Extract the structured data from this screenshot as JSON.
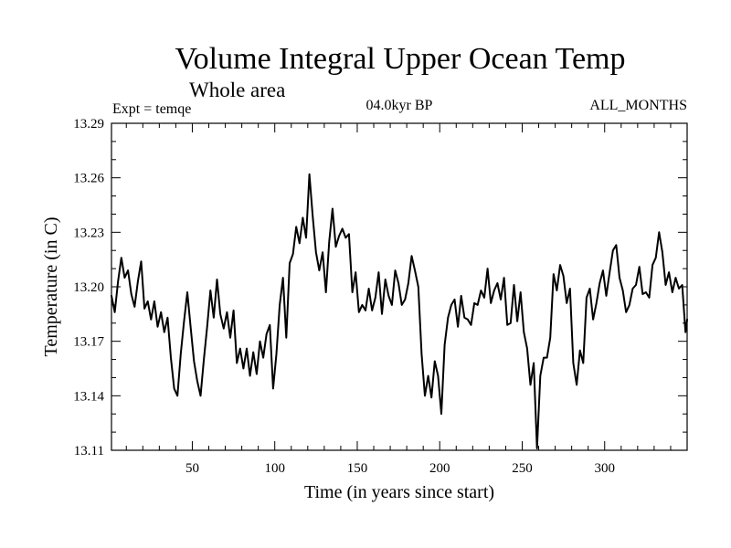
{
  "chart_data": {
    "type": "line",
    "title": "Volume Integral Upper Ocean Temp",
    "subtitle": "Whole area",
    "left_label": "Expt = temqe",
    "center_label": "04.0kyr BP",
    "right_label": "ALL_MONTHS",
    "xlabel": "Time (in years since start)",
    "ylabel": "Temperature (in C)",
    "xlim": [
      1,
      350
    ],
    "ylim": [
      13.11,
      13.29
    ],
    "xticks": [
      50,
      100,
      150,
      200,
      250,
      300
    ],
    "xtick_labels": [
      "50",
      "100",
      "150",
      "200",
      "250",
      "300"
    ],
    "yticks": [
      13.11,
      13.14,
      13.17,
      13.2,
      13.23,
      13.26,
      13.29
    ],
    "ytick_labels": [
      "13.11",
      "13.14",
      "13.17",
      "13.20",
      "13.23",
      "13.26",
      "13.29"
    ],
    "series": [
      {
        "name": "temqe",
        "color": "#000000",
        "x": [
          1,
          3,
          5,
          7,
          9,
          11,
          13,
          15,
          17,
          19,
          21,
          23,
          25,
          27,
          29,
          31,
          33,
          35,
          37,
          39,
          41,
          43,
          45,
          47,
          49,
          51,
          53,
          55,
          57,
          59,
          61,
          63,
          65,
          67,
          69,
          71,
          73,
          75,
          77,
          79,
          81,
          83,
          85,
          87,
          89,
          91,
          93,
          95,
          97,
          99,
          101,
          103,
          105,
          107,
          109,
          111,
          113,
          115,
          117,
          119,
          121,
          123,
          125,
          127,
          129,
          131,
          133,
          135,
          137,
          139,
          141,
          143,
          145,
          147,
          149,
          151,
          153,
          155,
          157,
          159,
          161,
          163,
          165,
          167,
          169,
          171,
          173,
          175,
          177,
          179,
          181,
          183,
          185,
          187,
          189,
          191,
          193,
          195,
          197,
          199,
          201,
          203,
          205,
          207,
          209,
          211,
          213,
          215,
          217,
          219,
          221,
          223,
          225,
          227,
          229,
          231,
          233,
          235,
          237,
          239,
          241,
          243,
          245,
          247,
          249,
          251,
          253,
          255,
          257,
          259,
          261,
          263,
          265,
          267,
          269,
          271,
          273,
          275,
          277,
          279,
          281,
          283,
          285,
          287,
          289,
          291,
          293,
          295,
          297,
          299,
          301,
          303,
          305,
          307,
          309,
          311,
          313,
          315,
          317,
          319,
          321,
          323,
          325,
          327,
          329,
          331,
          333,
          335,
          337,
          339,
          341,
          343,
          345,
          347,
          349,
          350
        ],
        "values": [
          13.195,
          13.186,
          13.203,
          13.216,
          13.205,
          13.209,
          13.196,
          13.189,
          13.203,
          13.214,
          13.188,
          13.192,
          13.182,
          13.192,
          13.178,
          13.186,
          13.175,
          13.183,
          13.161,
          13.144,
          13.14,
          13.163,
          13.181,
          13.197,
          13.178,
          13.159,
          13.148,
          13.14,
          13.16,
          13.178,
          13.198,
          13.183,
          13.204,
          13.185,
          13.177,
          13.186,
          13.172,
          13.187,
          13.158,
          13.166,
          13.155,
          13.166,
          13.151,
          13.164,
          13.152,
          13.17,
          13.161,
          13.174,
          13.179,
          13.144,
          13.163,
          13.19,
          13.205,
          13.172,
          13.213,
          13.218,
          13.233,
          13.224,
          13.238,
          13.227,
          13.262,
          13.239,
          13.219,
          13.209,
          13.219,
          13.197,
          13.225,
          13.243,
          13.222,
          13.228,
          13.232,
          13.227,
          13.229,
          13.197,
          13.208,
          13.186,
          13.19,
          13.187,
          13.199,
          13.187,
          13.194,
          13.208,
          13.185,
          13.204,
          13.195,
          13.19,
          13.209,
          13.202,
          13.19,
          13.193,
          13.202,
          13.217,
          13.209,
          13.2,
          13.163,
          13.14,
          13.151,
          13.139,
          13.159,
          13.151,
          13.13,
          13.168,
          13.183,
          13.19,
          13.193,
          13.178,
          13.195,
          13.183,
          13.182,
          13.179,
          13.191,
          13.19,
          13.198,
          13.194,
          13.21,
          13.191,
          13.198,
          13.202,
          13.193,
          13.205,
          13.179,
          13.18,
          13.201,
          13.181,
          13.197,
          13.175,
          13.166,
          13.146,
          13.158,
          13.111,
          13.151,
          13.161,
          13.161,
          13.172,
          13.207,
          13.198,
          13.212,
          13.206,
          13.191,
          13.199,
          13.158,
          13.146,
          13.165,
          13.158,
          13.194,
          13.199,
          13.182,
          13.191,
          13.202,
          13.209,
          13.195,
          13.208,
          13.22,
          13.223,
          13.205,
          13.198,
          13.186,
          13.19,
          13.199,
          13.201,
          13.211,
          13.196,
          13.197,
          13.194,
          13.212,
          13.216,
          13.23,
          13.219,
          13.201,
          13.208,
          13.197,
          13.205,
          13.199,
          13.201,
          13.175,
          13.182
        ]
      }
    ]
  }
}
